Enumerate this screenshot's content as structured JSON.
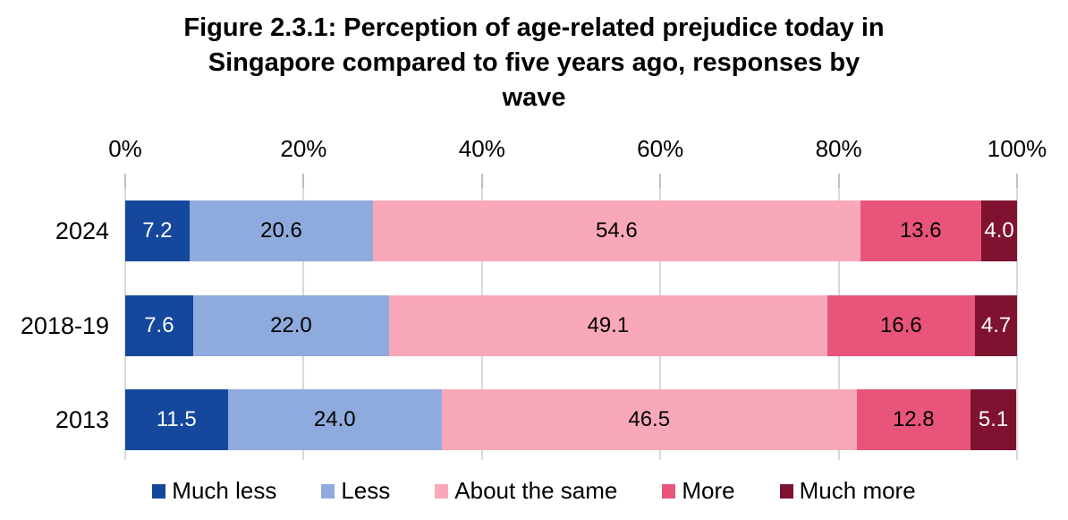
{
  "title_lines": [
    "Figure 2.3.1: Perception of age-related prejudice today in",
    "Singapore compared to five years ago, responses by",
    "wave"
  ],
  "chart_data": {
    "type": "bar",
    "stacked": true,
    "orientation": "horizontal",
    "title": "Figure 2.3.1: Perception of age-related prejudice today in Singapore compared to five years ago, responses by wave",
    "categories": [
      "2024",
      "2018-19",
      "2013"
    ],
    "series": [
      {
        "name": "Much less",
        "color": "#15489C",
        "label_color": "#FFFFFF",
        "values": [
          7.2,
          7.6,
          11.5
        ]
      },
      {
        "name": "Less",
        "color": "#8FAADC",
        "label_color": "#000000",
        "values": [
          20.6,
          22.0,
          24.0
        ]
      },
      {
        "name": "About the same",
        "color": "#F9A8BA",
        "label_color": "#000000",
        "values": [
          54.6,
          49.1,
          46.5
        ]
      },
      {
        "name": "More",
        "color": "#E8547A",
        "label_color": "#000000",
        "values": [
          13.6,
          16.6,
          12.8
        ]
      },
      {
        "name": "Much more",
        "color": "#7E1230",
        "label_color": "#FFFFFF",
        "values": [
          4.0,
          4.7,
          5.1
        ]
      }
    ],
    "x_axis": {
      "ticks": [
        "0%",
        "20%",
        "40%",
        "60%",
        "80%",
        "100%"
      ],
      "tick_values": [
        0,
        20,
        40,
        60,
        80,
        100
      ],
      "range": [
        0,
        100
      ],
      "gridlines": true,
      "position": "top"
    },
    "legend": {
      "position": "bottom",
      "entries": [
        "Much less",
        "Less",
        "About the same",
        "More",
        "Much more"
      ]
    },
    "value_label_decimals": 1
  },
  "colors": {
    "gridline": "#D9D9D9",
    "tick": "#BFBFBF",
    "text": "#000000",
    "background": "#FFFFFF"
  }
}
